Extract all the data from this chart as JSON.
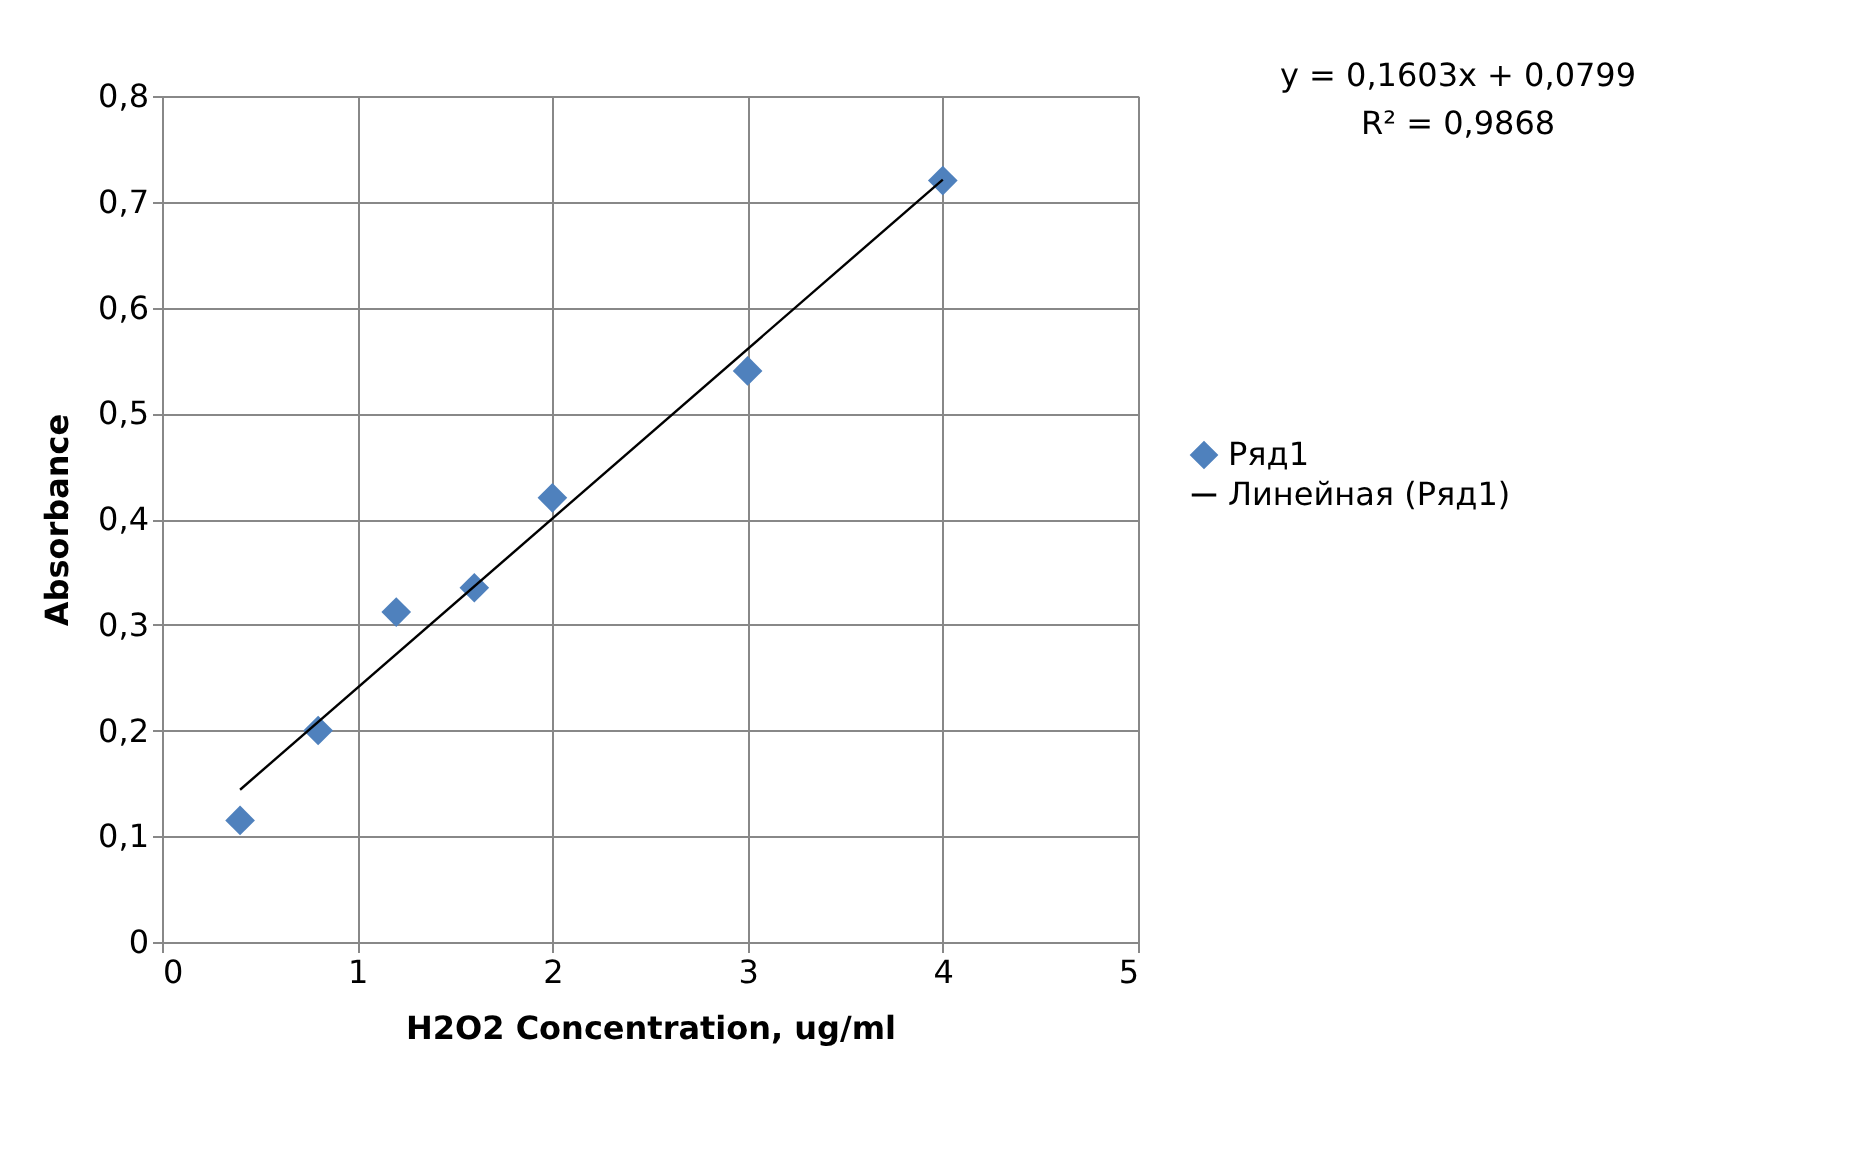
{
  "chart_data": {
    "type": "scatter",
    "xlabel": "H2O2 Concentration, ug/ml",
    "ylabel": "Absorbance",
    "series": [
      {
        "name": "Ряд1",
        "color": "#4f81bd",
        "marker": "diamond",
        "x": [
          0.4,
          0.8,
          1.2,
          1.6,
          2,
          3,
          4
        ],
        "values": [
          0.115,
          0.2,
          0.312,
          0.335,
          0.42,
          0.54,
          0.72
        ]
      },
      {
        "name": "Линейная (Ряд1)",
        "type": "line",
        "color": "#000000",
        "line_style": "solid",
        "x": [
          0.4,
          4
        ],
        "values": [
          0.144,
          0.721
        ]
      }
    ],
    "xlim": [
      0,
      5
    ],
    "xticks": [
      0,
      1,
      2,
      3,
      4,
      5
    ],
    "ylim": [
      0,
      0.8
    ],
    "yticks": [
      0,
      {
        "value": 0.1,
        "label": "0,1"
      },
      {
        "value": 0.2,
        "label": "0,2"
      },
      {
        "value": 0.3,
        "label": "0,3"
      },
      {
        "value": 0.4,
        "label": "0,4"
      },
      {
        "value": 0.5,
        "label": "0,5"
      },
      {
        "value": 0.6,
        "label": "0,6"
      },
      {
        "value": 0.7,
        "label": "0,7"
      },
      {
        "value": 0.8,
        "label": "0,8"
      }
    ],
    "grid": true,
    "legend": "right",
    "annotations": [
      "y = 0,1603x + 0,0799",
      "R² = 0,9868"
    ]
  }
}
